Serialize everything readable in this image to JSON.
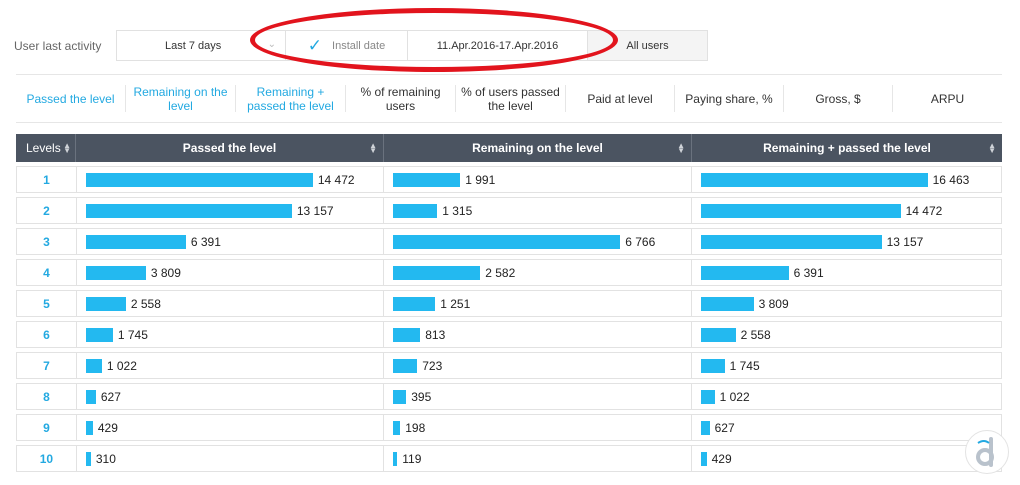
{
  "filters": {
    "label": "User last activity",
    "period": "Last 7 days",
    "install_date_label": "Install date",
    "date_range": "11.Apr.2016-17.Apr.2016",
    "users": "All users"
  },
  "tabs": [
    {
      "label": "Passed the level",
      "active": true
    },
    {
      "label": "Remaining on the level",
      "active": true
    },
    {
      "label": "Remaining + passed the level",
      "active": true
    },
    {
      "label": "% of remaining users",
      "active": false
    },
    {
      "label": "% of users passed the level",
      "active": false
    },
    {
      "label": "Paid at level",
      "active": false
    },
    {
      "label": "Paying share, %",
      "active": false
    },
    {
      "label": "Gross, $",
      "active": false
    },
    {
      "label": "ARPU",
      "active": false
    }
  ],
  "table": {
    "headers": [
      "Levels",
      "Passed the level",
      "Remaining on the level",
      "Remaining + passed the level"
    ],
    "rows": [
      {
        "level": "1",
        "passed": 14472,
        "passed_label": "14 472",
        "remaining": 1991,
        "remaining_label": "1 991",
        "total": 16463,
        "total_label": "16 463"
      },
      {
        "level": "2",
        "passed": 13157,
        "passed_label": "13 157",
        "remaining": 1315,
        "remaining_label": "1 315",
        "total": 14472,
        "total_label": "14 472"
      },
      {
        "level": "3",
        "passed": 6391,
        "passed_label": "6 391",
        "remaining": 6766,
        "remaining_label": "6 766",
        "total": 13157,
        "total_label": "13 157"
      },
      {
        "level": "4",
        "passed": 3809,
        "passed_label": "3 809",
        "remaining": 2582,
        "remaining_label": "2 582",
        "total": 6391,
        "total_label": "6 391"
      },
      {
        "level": "5",
        "passed": 2558,
        "passed_label": "2 558",
        "remaining": 1251,
        "remaining_label": "1 251",
        "total": 3809,
        "total_label": "3 809"
      },
      {
        "level": "6",
        "passed": 1745,
        "passed_label": "1 745",
        "remaining": 813,
        "remaining_label": "813",
        "total": 2558,
        "total_label": "2 558"
      },
      {
        "level": "7",
        "passed": 1022,
        "passed_label": "1 022",
        "remaining": 723,
        "remaining_label": "723",
        "total": 1745,
        "total_label": "1 745"
      },
      {
        "level": "8",
        "passed": 627,
        "passed_label": "627",
        "remaining": 395,
        "remaining_label": "395",
        "total": 1022,
        "total_label": "1 022"
      },
      {
        "level": "9",
        "passed": 429,
        "passed_label": "429",
        "remaining": 198,
        "remaining_label": "198",
        "total": 627,
        "total_label": "627"
      },
      {
        "level": "10",
        "passed": 310,
        "passed_label": "310",
        "remaining": 119,
        "remaining_label": "119",
        "total": 429,
        "total_label": "429"
      }
    ]
  },
  "colors": {
    "accent": "#23a9e1",
    "bar": "#23b9f0",
    "header_bg": "#4b5461",
    "highlight": "#e2141d"
  },
  "logo": {
    "icon": "devtodev-logo-icon",
    "letter": "d"
  }
}
